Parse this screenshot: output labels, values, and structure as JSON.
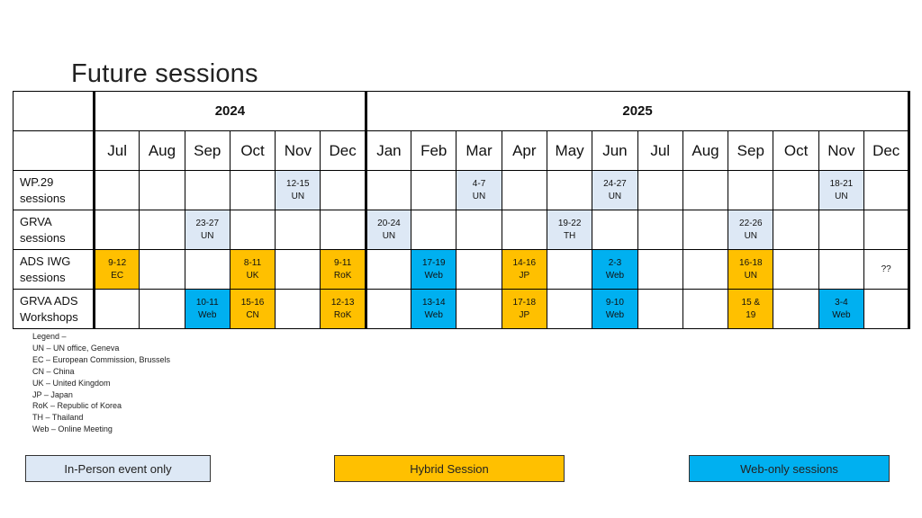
{
  "title": "Future sessions",
  "years": [
    "2024",
    "2025"
  ],
  "months_2024": [
    "Jul",
    "Aug",
    "Sep",
    "Oct",
    "Nov",
    "Dec"
  ],
  "months_2025": [
    "Jan",
    "Feb",
    "Mar",
    "Apr",
    "May",
    "Jun",
    "Jul",
    "Aug",
    "Sep",
    "Oct",
    "Nov",
    "Dec"
  ],
  "rows": [
    {
      "label": "WP.29\nsessions",
      "cells": [
        {
          "text": "",
          "type": ""
        },
        {
          "text": "",
          "type": ""
        },
        {
          "text": "",
          "type": ""
        },
        {
          "text": "",
          "type": ""
        },
        {
          "text": "12-15\nUN",
          "type": "inperson"
        },
        {
          "text": "",
          "type": ""
        },
        {
          "text": "",
          "type": ""
        },
        {
          "text": "",
          "type": ""
        },
        {
          "text": "4-7\nUN",
          "type": "inperson"
        },
        {
          "text": "",
          "type": ""
        },
        {
          "text": "",
          "type": ""
        },
        {
          "text": "24-27\nUN",
          "type": "inperson"
        },
        {
          "text": "",
          "type": ""
        },
        {
          "text": "",
          "type": ""
        },
        {
          "text": "",
          "type": ""
        },
        {
          "text": "",
          "type": ""
        },
        {
          "text": "18-21\nUN",
          "type": "inperson"
        },
        {
          "text": "",
          "type": ""
        }
      ]
    },
    {
      "label": "GRVA\nsessions",
      "cells": [
        {
          "text": "",
          "type": ""
        },
        {
          "text": "",
          "type": ""
        },
        {
          "text": "23-27\nUN",
          "type": "inperson"
        },
        {
          "text": "",
          "type": ""
        },
        {
          "text": "",
          "type": ""
        },
        {
          "text": "",
          "type": ""
        },
        {
          "text": "20-24\nUN",
          "type": "inperson"
        },
        {
          "text": "",
          "type": ""
        },
        {
          "text": "",
          "type": ""
        },
        {
          "text": "",
          "type": ""
        },
        {
          "text": "19-22\nTH",
          "type": "inperson"
        },
        {
          "text": "",
          "type": ""
        },
        {
          "text": "",
          "type": ""
        },
        {
          "text": "",
          "type": ""
        },
        {
          "text": "22-26\nUN",
          "type": "inperson"
        },
        {
          "text": "",
          "type": ""
        },
        {
          "text": "",
          "type": ""
        },
        {
          "text": "",
          "type": ""
        }
      ]
    },
    {
      "label": "ADS IWG\nsessions",
      "cells": [
        {
          "text": "9-12\nEC",
          "type": "hybrid"
        },
        {
          "text": "",
          "type": ""
        },
        {
          "text": "",
          "type": ""
        },
        {
          "text": "8-11\nUK",
          "type": "hybrid"
        },
        {
          "text": "",
          "type": ""
        },
        {
          "text": "9-11\nRoK",
          "type": "hybrid"
        },
        {
          "text": "",
          "type": ""
        },
        {
          "text": "17-19\nWeb",
          "type": "web"
        },
        {
          "text": "",
          "type": ""
        },
        {
          "text": "14-16\nJP",
          "type": "hybrid"
        },
        {
          "text": "",
          "type": ""
        },
        {
          "text": "2-3\nWeb",
          "type": "web"
        },
        {
          "text": "",
          "type": ""
        },
        {
          "text": "",
          "type": ""
        },
        {
          "text": "16-18\nUN",
          "type": "hybrid"
        },
        {
          "text": "",
          "type": ""
        },
        {
          "text": "",
          "type": ""
        },
        {
          "text": "??",
          "type": ""
        }
      ]
    },
    {
      "label": "GRVA ADS\nWorkshops",
      "cells": [
        {
          "text": "",
          "type": ""
        },
        {
          "text": "",
          "type": ""
        },
        {
          "text": "10-11\nWeb",
          "type": "web"
        },
        {
          "text": "15-16\nCN",
          "type": "hybrid"
        },
        {
          "text": "",
          "type": ""
        },
        {
          "text": "12-13\nRoK",
          "type": "hybrid"
        },
        {
          "text": "",
          "type": ""
        },
        {
          "text": "13-14\nWeb",
          "type": "web"
        },
        {
          "text": "",
          "type": ""
        },
        {
          "text": "17-18\nJP",
          "type": "hybrid"
        },
        {
          "text": "",
          "type": ""
        },
        {
          "text": "9-10\nWeb",
          "type": "web"
        },
        {
          "text": "",
          "type": ""
        },
        {
          "text": "",
          "type": ""
        },
        {
          "text": "15 &\n19",
          "type": "hybrid"
        },
        {
          "text": "",
          "type": ""
        },
        {
          "text": "3-4\nWeb",
          "type": "web"
        },
        {
          "text": "",
          "type": ""
        }
      ]
    }
  ],
  "legend": [
    "Legend –",
    "UN – UN office, Geneva",
    "EC – European Commission, Brussels",
    "CN – China",
    "UK – United Kingdom",
    "JP – Japan",
    "RoK – Republic of Korea",
    "TH – Thailand",
    "Web – Online Meeting"
  ],
  "key": {
    "inperson": "In-Person event only",
    "hybrid": "Hybrid Session",
    "web": "Web-only sessions"
  },
  "colors": {
    "inperson": "#dde8f5",
    "hybrid": "#ffc000",
    "web": "#00b0f0"
  }
}
